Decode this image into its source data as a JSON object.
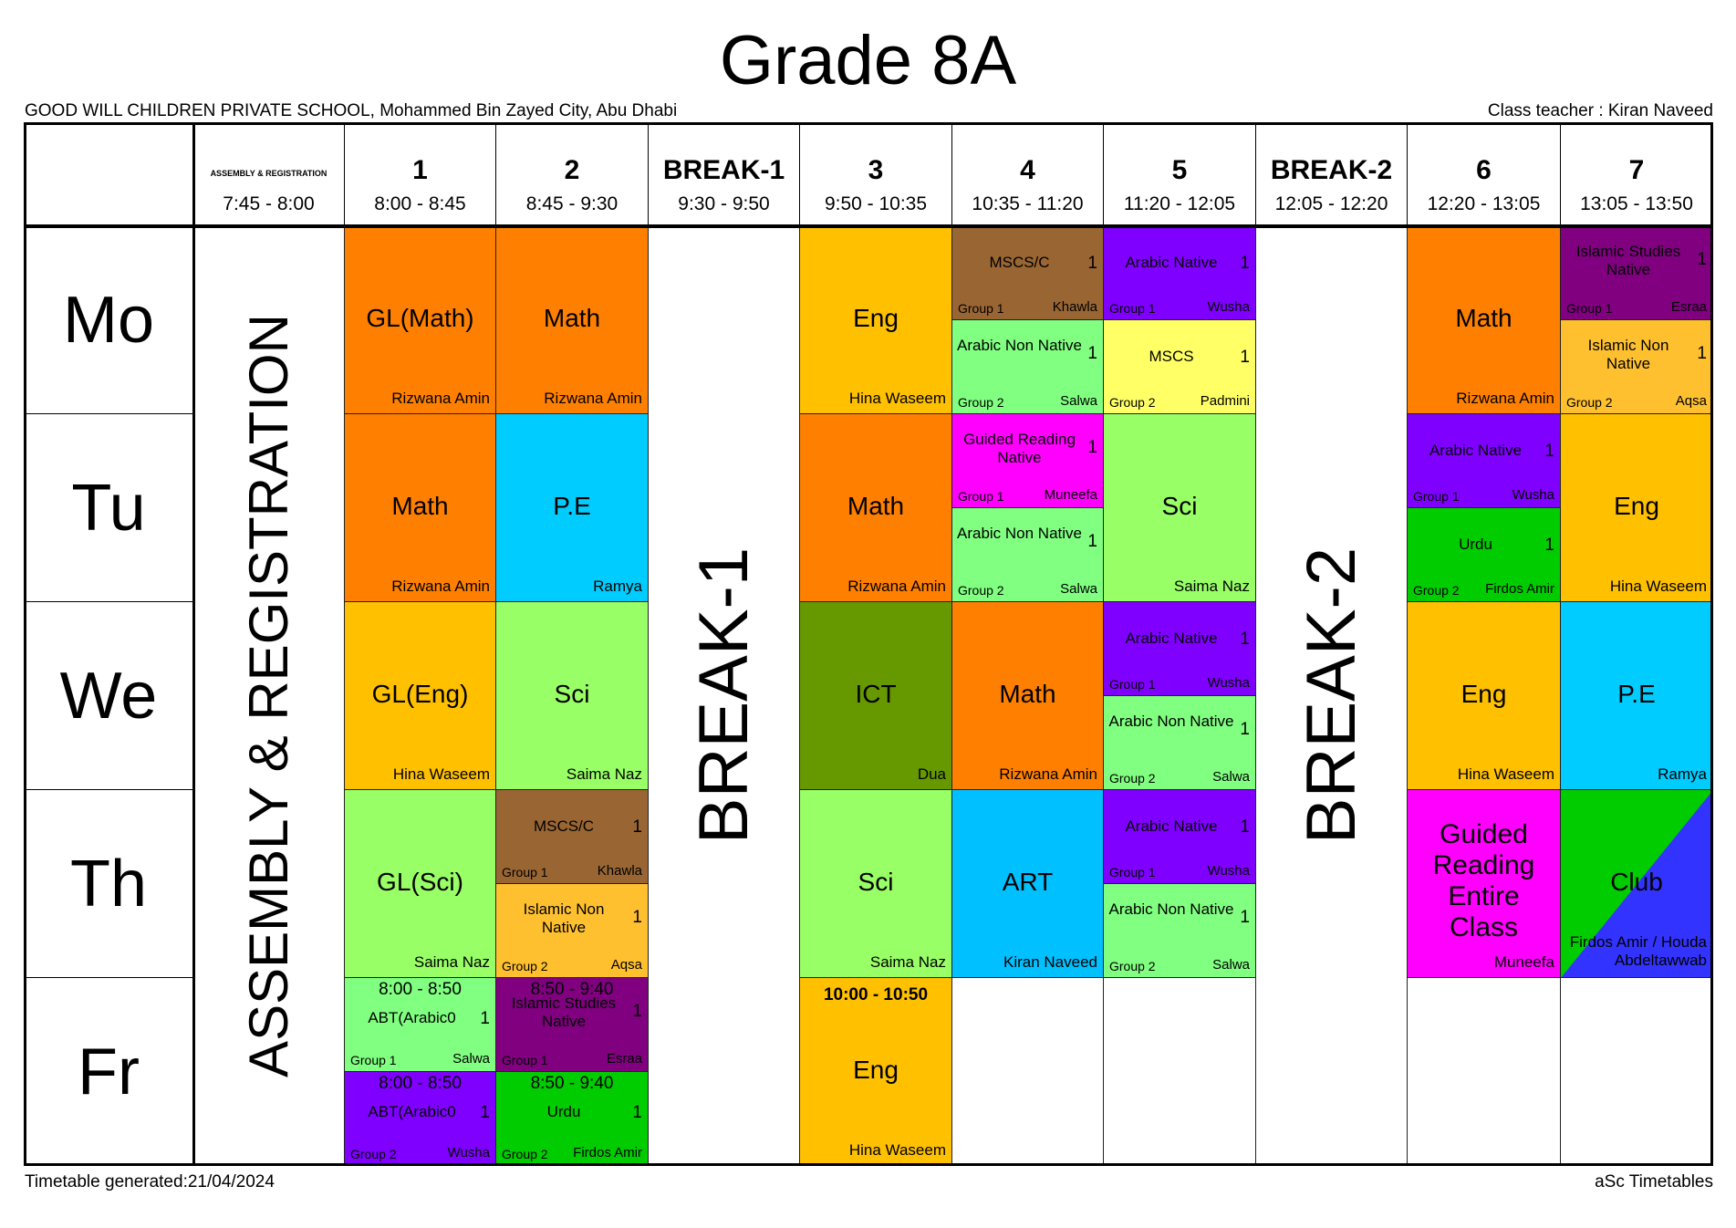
{
  "title": "Grade 8A",
  "school": "GOOD WILL CHILDREN PRIVATE SCHOOL, Mohammed Bin Zayed City, Abu Dhabi",
  "class_teacher": "Class teacher : Kiran Naveed",
  "footer": {
    "generated": "Timetable generated:21/04/2024",
    "brand": "aSc Timetables"
  },
  "columns": [
    {
      "id": "assembly",
      "label": "ASSEMBLY & REGISTRATION",
      "time": "7:45 - 8:00",
      "small": true
    },
    {
      "id": "p1",
      "label": "1",
      "time": "8:00 - 8:45"
    },
    {
      "id": "p2",
      "label": "2",
      "time": "8:45 - 9:30"
    },
    {
      "id": "break1",
      "label": "BREAK-1",
      "time": "9:30 - 9:50"
    },
    {
      "id": "p3",
      "label": "3",
      "time": "9:50 - 10:35"
    },
    {
      "id": "p4",
      "label": "4",
      "time": "10:35 - 11:20"
    },
    {
      "id": "p5",
      "label": "5",
      "time": "11:20 - 12:05"
    },
    {
      "id": "break2",
      "label": "BREAK-2",
      "time": "12:05 - 12:20"
    },
    {
      "id": "p6",
      "label": "6",
      "time": "12:20 - 13:05"
    },
    {
      "id": "p7",
      "label": "7",
      "time": "13:05 - 13:50"
    }
  ],
  "days": [
    "Mo",
    "Tu",
    "We",
    "Th",
    "Fr"
  ],
  "spanning_labels": {
    "assembly": "ASSEMBLY & REGISTRATION",
    "break1": "BREAK-1",
    "break2": "BREAK-2"
  },
  "colors": {
    "orange": "#FF8000",
    "cyan": "#00CCFF",
    "amber": "#FFC000",
    "lightgreen": "#99FF66",
    "brown": "#996633",
    "violet": "#8000FF",
    "palegreen": "#80FF80",
    "yellow": "#FFFF66",
    "magenta": "#FF00FF",
    "olive": "#669900",
    "sky": "#00C0FF",
    "plum": "#800080",
    "lightorange": "#FFC030",
    "green": "#00CC00",
    "blue": "#3333FF"
  },
  "lessons": [
    {
      "day": 0,
      "col": 1,
      "subject": "GL(Math)",
      "teacher": "Rizwana Amin",
      "color": "#FF8000"
    },
    {
      "day": 0,
      "col": 2,
      "subject": "Math",
      "teacher": "Rizwana Amin",
      "color": "#FF8000"
    },
    {
      "day": 0,
      "col": 4,
      "subject": "Eng",
      "teacher": "Hina Waseem",
      "color": "#FFC000"
    },
    {
      "day": 0,
      "col": 5,
      "split": [
        {
          "subject": "MSCS/C",
          "count": "1",
          "group": "Group 1",
          "teacher": "Khawla",
          "color": "#996633"
        },
        {
          "subject": "Arabic Non Native",
          "count": "1",
          "group": "Group 2",
          "teacher": "Salwa",
          "color": "#80FF80"
        }
      ]
    },
    {
      "day": 0,
      "col": 6,
      "split": [
        {
          "subject": "Arabic Native",
          "count": "1",
          "group": "Group 1",
          "teacher": "Wusha",
          "color": "#8000FF"
        },
        {
          "subject": "MSCS",
          "count": "1",
          "group": "Group 2",
          "teacher": "Padmini",
          "color": "#FFFF66"
        }
      ]
    },
    {
      "day": 0,
      "col": 8,
      "subject": "Math",
      "teacher": "Rizwana Amin",
      "color": "#FF8000"
    },
    {
      "day": 0,
      "col": 9,
      "split": [
        {
          "subject": "Islamic Studies Native",
          "count": "1",
          "group": "Group 1",
          "teacher": "Esraa",
          "color": "#800080"
        },
        {
          "subject": "Islamic Non Native",
          "count": "1",
          "group": "Group 2",
          "teacher": "Aqsa",
          "color": "#FFC030"
        }
      ]
    },
    {
      "day": 1,
      "col": 1,
      "subject": "Math",
      "teacher": "Rizwana Amin",
      "color": "#FF8000"
    },
    {
      "day": 1,
      "col": 2,
      "subject": "P.E",
      "teacher": "Ramya",
      "color": "#00CCFF"
    },
    {
      "day": 1,
      "col": 4,
      "subject": "Math",
      "teacher": "Rizwana Amin",
      "color": "#FF8000"
    },
    {
      "day": 1,
      "col": 5,
      "split": [
        {
          "subject": "Guided Reading Native",
          "count": "1",
          "group": "Group 1",
          "teacher": "Muneefa",
          "color": "#FF00FF"
        },
        {
          "subject": "Arabic Non Native",
          "count": "1",
          "group": "Group 2",
          "teacher": "Salwa",
          "color": "#80FF80"
        }
      ]
    },
    {
      "day": 1,
      "col": 6,
      "subject": "Sci",
      "teacher": "Saima Naz",
      "color": "#99FF66"
    },
    {
      "day": 1,
      "col": 8,
      "split": [
        {
          "subject": "Arabic Native",
          "count": "1",
          "group": "Group 1",
          "teacher": "Wusha",
          "color": "#8000FF"
        },
        {
          "subject": "Urdu",
          "count": "1",
          "group": "Group 2",
          "teacher": "Firdos Amir",
          "color": "#00CC00"
        }
      ]
    },
    {
      "day": 1,
      "col": 9,
      "subject": "Eng",
      "teacher": "Hina Waseem",
      "color": "#FFC000"
    },
    {
      "day": 2,
      "col": 1,
      "subject": "GL(Eng)",
      "teacher": "Hina Waseem",
      "color": "#FFC000"
    },
    {
      "day": 2,
      "col": 2,
      "subject": "Sci",
      "teacher": "Saima Naz",
      "color": "#99FF66"
    },
    {
      "day": 2,
      "col": 4,
      "subject": "ICT",
      "teacher": "Dua",
      "color": "#669900"
    },
    {
      "day": 2,
      "col": 5,
      "subject": "Math",
      "teacher": "Rizwana Amin",
      "color": "#FF8000"
    },
    {
      "day": 2,
      "col": 6,
      "split": [
        {
          "subject": "Arabic Native",
          "count": "1",
          "group": "Group 1",
          "teacher": "Wusha",
          "color": "#8000FF"
        },
        {
          "subject": "Arabic Non Native",
          "count": "1",
          "group": "Group 2",
          "teacher": "Salwa",
          "color": "#80FF80"
        }
      ]
    },
    {
      "day": 2,
      "col": 8,
      "subject": "Eng",
      "teacher": "Hina Waseem",
      "color": "#FFC000"
    },
    {
      "day": 2,
      "col": 9,
      "subject": "P.E",
      "teacher": "Ramya",
      "color": "#00CCFF"
    },
    {
      "day": 3,
      "col": 1,
      "subject": "GL(Sci)",
      "teacher": "Saima Naz",
      "color": "#99FF66"
    },
    {
      "day": 3,
      "col": 2,
      "split": [
        {
          "subject": "MSCS/C",
          "count": "1",
          "group": "Group 1",
          "teacher": "Khawla",
          "color": "#996633"
        },
        {
          "subject": "Islamic Non Native",
          "count": "1",
          "group": "Group 2",
          "teacher": "Aqsa",
          "color": "#FFC030"
        }
      ]
    },
    {
      "day": 3,
      "col": 4,
      "subject": "Sci",
      "teacher": "Saima Naz",
      "color": "#99FF66"
    },
    {
      "day": 3,
      "col": 5,
      "subject": "ART",
      "teacher": "Kiran Naveed",
      "color": "#00C0FF"
    },
    {
      "day": 3,
      "col": 6,
      "split": [
        {
          "subject": "Arabic Native",
          "count": "1",
          "group": "Group 1",
          "teacher": "Wusha",
          "color": "#8000FF"
        },
        {
          "subject": "Arabic Non Native",
          "count": "1",
          "group": "Group 2",
          "teacher": "Salwa",
          "color": "#80FF80"
        }
      ]
    },
    {
      "day": 3,
      "col": 8,
      "subject": "Guided Reading Entire Class",
      "teacher": "Muneefa",
      "color": "#FF00FF",
      "large_wrap": true
    },
    {
      "day": 3,
      "col": 9,
      "subject": "Club",
      "teacher": "Firdos Amir / Houda Abdeltawwab",
      "color": "#00CC00",
      "color2": "#3333FF",
      "diagonal": true
    },
    {
      "day": 4,
      "col": 1,
      "split": [
        {
          "time": "8:00 - 8:50",
          "subject": "ABT(Arabic0",
          "count": "1",
          "group": "Group 1",
          "teacher": "Salwa",
          "color": "#80FF80"
        },
        {
          "time": "8:00 - 8:50",
          "subject": "ABT(Arabic0",
          "count": "1",
          "group": "Group 2",
          "teacher": "Wusha",
          "color": "#8000FF"
        }
      ]
    },
    {
      "day": 4,
      "col": 2,
      "split": [
        {
          "time": "8:50 - 9:40",
          "subject": "Islamic Studies Native",
          "count": "1",
          "group": "Group 1",
          "teacher": "Esraa",
          "color": "#800080"
        },
        {
          "time": "8:50 - 9:40",
          "subject": "Urdu",
          "count": "1",
          "group": "Group 2",
          "teacher": "Firdos Amir",
          "color": "#00CC00"
        }
      ]
    },
    {
      "day": 4,
      "col": 4,
      "subject": "Eng",
      "teacher": "Hina Waseem",
      "color": "#FFC000",
      "time": "10:00 - 10:50"
    }
  ]
}
